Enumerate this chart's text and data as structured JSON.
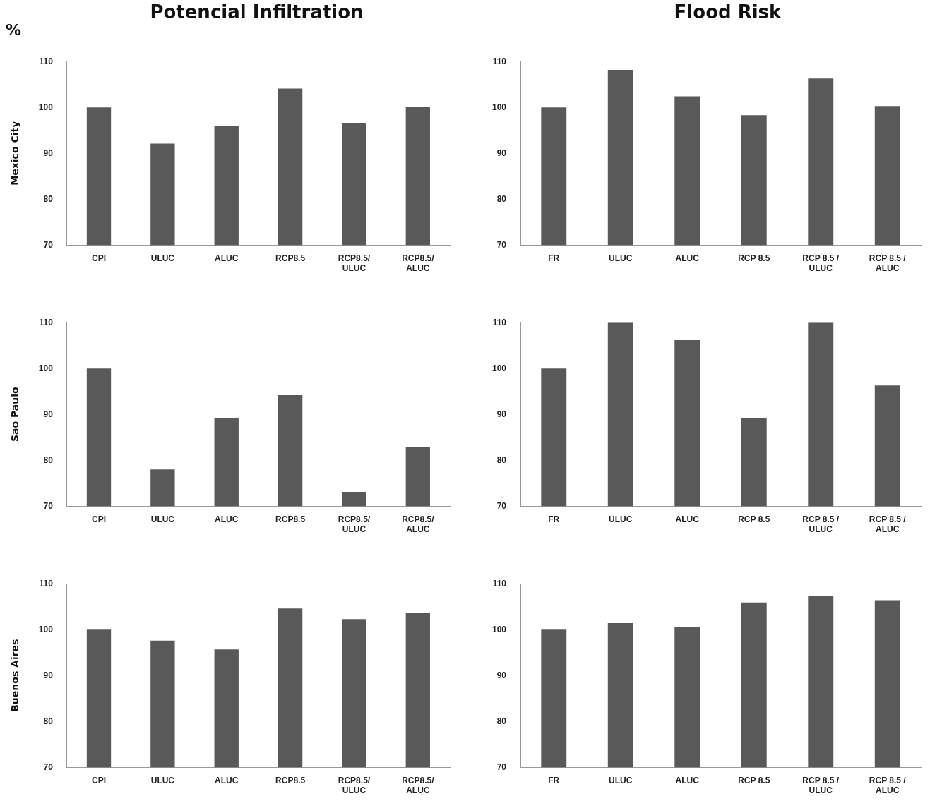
{
  "chart_data": [
    {
      "type": "bar",
      "title": "Potencial Infiltration",
      "ylabel": "Mexico City",
      "annotations": [
        "%"
      ],
      "categories": [
        "CPI",
        "ULUC",
        "ALUC",
        "RCP8.5",
        "RCP8.5/ ULUC",
        "RCP8.5/ ALUC"
      ],
      "values": [
        100,
        92.1,
        95.9,
        104.1,
        96.5,
        100.1
      ],
      "color": "#595959",
      "ylim": [
        70,
        110
      ],
      "yticks": [
        70,
        80,
        90,
        100,
        110
      ]
    },
    {
      "type": "bar",
      "title": "Flood Risk",
      "categories": [
        "FR",
        "ULUC",
        "ALUC",
        "RCP 8.5",
        "RCP 8.5 / ULUC",
        "RCP 8.5 / ALUC"
      ],
      "values": [
        100,
        108.2,
        102.4,
        98.3,
        106.3,
        100.3
      ],
      "color": "#595959",
      "ylim": [
        70,
        110
      ],
      "yticks": [
        70,
        80,
        90,
        100,
        110
      ]
    },
    {
      "type": "bar",
      "ylabel": "Sao Paulo",
      "categories": [
        "CPI",
        "ULUC",
        "ALUC",
        "RCP8.5",
        "RCP8.5/ ULUC",
        "RCP8.5/ ALUC"
      ],
      "values": [
        100,
        78,
        89.1,
        94.2,
        73.1,
        82.9
      ],
      "color": "#595959",
      "ylim": [
        70,
        110
      ],
      "yticks": [
        70,
        80,
        90,
        100,
        110
      ]
    },
    {
      "type": "bar",
      "categories": [
        "FR",
        "ULUC",
        "ALUC",
        "RCP 8.5",
        "RCP 8.5 / ULUC",
        "RCP 8.5 / ALUC"
      ],
      "values": [
        100,
        110,
        106.2,
        89.1,
        110,
        96.3
      ],
      "color": "#595959",
      "ylim": [
        70,
        110
      ],
      "yticks": [
        70,
        80,
        90,
        100,
        110
      ]
    },
    {
      "type": "bar",
      "ylabel": "Buenos Aires",
      "categories": [
        "CPI",
        "ULUC",
        "ALUC",
        "RCP8.5",
        "RCP8.5/ ULUC",
        "RCP8.5/ ALUC"
      ],
      "values": [
        100,
        97.6,
        95.7,
        104.6,
        102.3,
        103.6
      ],
      "color": "#595959",
      "ylim": [
        70,
        110
      ],
      "yticks": [
        70,
        80,
        90,
        100,
        110
      ]
    },
    {
      "type": "bar",
      "categories": [
        "FR",
        "ULUC",
        "ALUC",
        "RCP 8.5",
        "RCP 8.5 / ULUC",
        "RCP 8.5 / ALUC"
      ],
      "values": [
        100,
        101.4,
        100.5,
        105.9,
        107.3,
        106.4
      ],
      "color": "#595959",
      "ylim": [
        70,
        110
      ],
      "yticks": [
        70,
        80,
        90,
        100,
        110
      ]
    }
  ]
}
